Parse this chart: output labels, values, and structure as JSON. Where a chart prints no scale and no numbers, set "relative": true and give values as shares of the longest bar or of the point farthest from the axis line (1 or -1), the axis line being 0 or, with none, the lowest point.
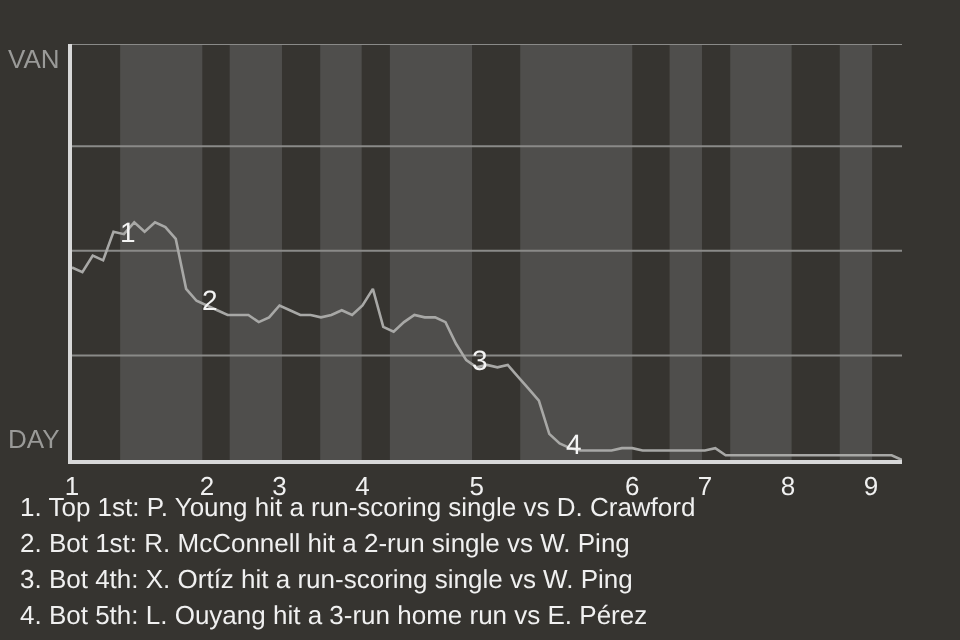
{
  "chart_data": {
    "type": "line",
    "relative": true,
    "categories": [
      "1",
      null,
      null,
      null,
      null,
      null,
      null,
      null,
      null,
      null,
      null,
      null,
      null,
      "2",
      null,
      null,
      null,
      null,
      null,
      null,
      "3",
      null,
      null,
      null,
      null,
      null,
      null,
      null,
      "4",
      null,
      null,
      null,
      null,
      null,
      null,
      null,
      null,
      null,
      null,
      "5",
      null,
      null,
      null,
      null,
      null,
      null,
      null,
      null,
      null,
      null,
      null,
      null,
      null,
      null,
      "6",
      null,
      null,
      null,
      null,
      null,
      null,
      "7",
      null,
      null,
      null,
      null,
      null,
      null,
      null,
      "8",
      null,
      null,
      null,
      null,
      null,
      null,
      null,
      "9",
      null,
      null,
      null
    ],
    "legend": false,
    "marker": "none",
    "line_style": "solid",
    "series": [
      {
        "color": "#a8a8a6",
        "values": [
          0.81,
          0.79,
          0.86,
          0.84,
          0.96,
          0.95,
          1,
          0.96,
          1,
          0.98,
          0.93,
          0.72,
          0.67,
          0.65,
          0.63,
          0.61,
          0.61,
          0.61,
          0.58,
          0.6,
          0.65,
          0.63,
          0.61,
          0.61,
          0.6,
          0.61,
          0.63,
          0.61,
          0.65,
          0.72,
          0.56,
          0.54,
          0.58,
          0.61,
          0.6,
          0.6,
          0.58,
          0.49,
          0.42,
          0.39,
          0.4,
          0.39,
          0.4,
          0.35,
          0.3,
          0.25,
          0.11,
          0.07,
          0.05,
          0.04,
          0.04,
          0.04,
          0.04,
          0.05,
          0.05,
          0.04,
          0.04,
          0.04,
          0.04,
          0.04,
          0.04,
          0.04,
          0.05,
          0.02,
          0.02,
          0.02,
          0.02,
          0.02,
          0.02,
          0.02,
          0.02,
          0.02,
          0.02,
          0.02,
          0.02,
          0.02,
          0.02,
          0.02,
          0.02,
          0.02,
          0
        ]
      }
    ],
    "ref_lines": [
      {
        "axis": "y",
        "value": 0.44,
        "color": "#8a8a88"
      },
      {
        "axis": "y",
        "value": 0.88,
        "color": "#8a8a88"
      },
      {
        "axis": "y",
        "value": 1.32,
        "color": "#8a8a88"
      },
      {
        "axis": "y",
        "value": 1.75,
        "color": "#8a8a88"
      }
    ],
    "annotations": [
      {
        "text": "1",
        "y": 0.96
      },
      {
        "text": "2",
        "y": 0.67
      },
      {
        "text": "3",
        "y": 0.42
      },
      {
        "text": "4",
        "y": 0.07
      },
      "VAN",
      "DAY",
      "1. Top 1st: P. Young hit a run-scoring single vs D. Crawford",
      "2. Bot 1st: R. McConnell hit a 2-run single vs W. Ping",
      "3. Bot 4th: X. Ortíz hit a run-scoring single vs W. Ping",
      "4. Bot 5th: L. Ouyang hit a 3-run home run vs E. Pérez"
    ]
  }
}
